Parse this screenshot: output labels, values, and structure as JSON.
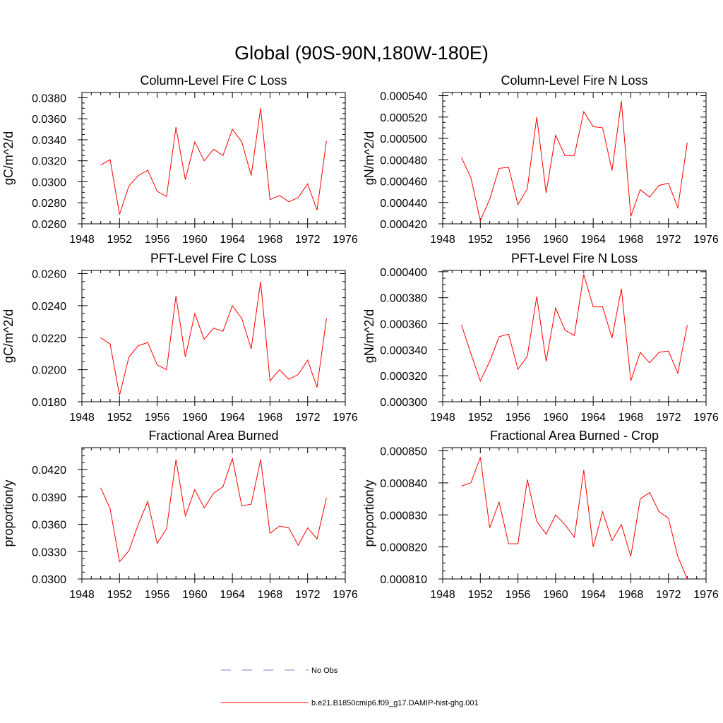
{
  "figure_title": "Global (90S-90N,180W-180E)",
  "line_color": "#ff0000",
  "obs_color": "#8080c0",
  "legend": {
    "entries": [
      {
        "label": "No Obs",
        "style": "dashed",
        "color": "#8080c0"
      },
      {
        "label": "b.e21.B1850cmip6.f09_g17.DAMIP-hist-ghg.001",
        "style": "solid",
        "color": "#ff0000"
      }
    ]
  },
  "chart_data": [
    {
      "type": "line",
      "title": "Column-Level Fire C Loss",
      "ylabel": "gC/m^2/d",
      "xlim": [
        1948,
        1976
      ],
      "xticks": [
        "1948",
        "1952",
        "1956",
        "1960",
        "1964",
        "1968",
        "1972",
        "1976"
      ],
      "ylim": [
        0.026,
        0.0385
      ],
      "yticks": [
        "0.0260",
        "0.0280",
        "0.0300",
        "0.0320",
        "0.0340",
        "0.0360",
        "0.0380"
      ],
      "series": [
        {
          "x": [
            1950,
            1951,
            1952,
            1953,
            1954,
            1955,
            1956,
            1957,
            1958,
            1959,
            1960,
            1961,
            1962,
            1963,
            1964,
            1965,
            1966,
            1967,
            1968,
            1969,
            1970,
            1971,
            1972,
            1973,
            1974
          ],
          "values": [
            0.0316,
            0.0321,
            0.0269,
            0.0296,
            0.0306,
            0.0311,
            0.0291,
            0.0286,
            0.0352,
            0.0302,
            0.0338,
            0.032,
            0.0331,
            0.0325,
            0.035,
            0.0338,
            0.0306,
            0.037,
            0.0283,
            0.0287,
            0.0281,
            0.0285,
            0.0298,
            0.0273,
            0.0339
          ]
        }
      ]
    },
    {
      "type": "line",
      "title": "Column-Level Fire N Loss",
      "ylabel": "gN/m^2/d",
      "xlim": [
        1948,
        1976
      ],
      "xticks": [
        "1948",
        "1952",
        "1956",
        "1960",
        "1964",
        "1968",
        "1972",
        "1976"
      ],
      "ylim": [
        0.00042,
        0.000543
      ],
      "yticks": [
        "0.000420",
        "0.000440",
        "0.000460",
        "0.000480",
        "0.000500",
        "0.000520",
        "0.000540"
      ],
      "series": [
        {
          "x": [
            1950,
            1951,
            1952,
            1953,
            1954,
            1955,
            1956,
            1957,
            1958,
            1959,
            1960,
            1961,
            1962,
            1963,
            1964,
            1965,
            1966,
            1967,
            1968,
            1969,
            1970,
            1971,
            1972,
            1973,
            1974
          ],
          "values": [
            0.000482,
            0.000463,
            0.000423,
            0.000443,
            0.000472,
            0.000473,
            0.000438,
            0.000453,
            0.00052,
            0.000449,
            0.000503,
            0.000484,
            0.000484,
            0.000525,
            0.000511,
            0.00051,
            0.00047,
            0.000535,
            0.000427,
            0.000452,
            0.000445,
            0.000456,
            0.000458,
            0.000435,
            0.000496
          ]
        }
      ]
    },
    {
      "type": "line",
      "title": "PFT-Level Fire C Loss",
      "ylabel": "gC/m^2/d",
      "xlim": [
        1948,
        1976
      ],
      "xticks": [
        "1948",
        "1952",
        "1956",
        "1960",
        "1964",
        "1968",
        "1972",
        "1976"
      ],
      "ylim": [
        0.018,
        0.0262
      ],
      "yticks": [
        "0.0180",
        "0.0200",
        "0.0220",
        "0.0240",
        "0.0260"
      ],
      "series": [
        {
          "x": [
            1950,
            1951,
            1952,
            1953,
            1954,
            1955,
            1956,
            1957,
            1958,
            1959,
            1960,
            1961,
            1962,
            1963,
            1964,
            1965,
            1966,
            1967,
            1968,
            1969,
            1970,
            1971,
            1972,
            1973,
            1974
          ],
          "values": [
            0.022,
            0.0216,
            0.0184,
            0.0208,
            0.0215,
            0.0217,
            0.0203,
            0.02,
            0.0246,
            0.0208,
            0.0235,
            0.0219,
            0.0226,
            0.0224,
            0.024,
            0.0232,
            0.0213,
            0.0255,
            0.0193,
            0.02,
            0.0194,
            0.0197,
            0.0206,
            0.0189,
            0.0232
          ]
        }
      ]
    },
    {
      "type": "line",
      "title": "PFT-Level Fire N Loss",
      "ylabel": "gN/m^2/d",
      "xlim": [
        1948,
        1976
      ],
      "xticks": [
        "1948",
        "1952",
        "1956",
        "1960",
        "1964",
        "1968",
        "1972",
        "1976"
      ],
      "ylim": [
        0.0003,
        0.000401
      ],
      "yticks": [
        "0.000300",
        "0.000320",
        "0.000340",
        "0.000360",
        "0.000380",
        "0.000400"
      ],
      "series": [
        {
          "x": [
            1950,
            1951,
            1952,
            1953,
            1954,
            1955,
            1956,
            1957,
            1958,
            1959,
            1960,
            1961,
            1962,
            1963,
            1964,
            1965,
            1966,
            1967,
            1968,
            1969,
            1970,
            1971,
            1972,
            1973,
            1974
          ],
          "values": [
            0.000359,
            0.000337,
            0.000316,
            0.000331,
            0.00035,
            0.000352,
            0.000325,
            0.000335,
            0.000381,
            0.000331,
            0.000372,
            0.000355,
            0.000351,
            0.000398,
            0.000373,
            0.000373,
            0.000349,
            0.000387,
            0.000316,
            0.000338,
            0.00033,
            0.000338,
            0.000339,
            0.000322,
            0.000359
          ]
        }
      ]
    },
    {
      "type": "line",
      "title": "Fractional Area Burned",
      "ylabel": "proportion/y",
      "xlim": [
        1948,
        1976
      ],
      "xticks": [
        "1948",
        "1952",
        "1956",
        "1960",
        "1964",
        "1968",
        "1972",
        "1976"
      ],
      "ylim": [
        0.03,
        0.0444
      ],
      "yticks": [
        "0.0300",
        "0.0330",
        "0.0360",
        "0.0390",
        "0.0420"
      ],
      "series": [
        {
          "x": [
            1950,
            1951,
            1952,
            1953,
            1954,
            1955,
            1956,
            1957,
            1958,
            1959,
            1960,
            1961,
            1962,
            1963,
            1964,
            1965,
            1966,
            1967,
            1968,
            1969,
            1970,
            1971,
            1972,
            1973,
            1974
          ],
          "values": [
            0.04,
            0.0377,
            0.0319,
            0.0331,
            0.036,
            0.0385,
            0.0339,
            0.0355,
            0.0431,
            0.0369,
            0.0398,
            0.0378,
            0.0394,
            0.0401,
            0.0432,
            0.038,
            0.0382,
            0.0431,
            0.035,
            0.0358,
            0.0356,
            0.0337,
            0.0356,
            0.0344,
            0.0389
          ]
        }
      ]
    },
    {
      "type": "line",
      "title": "Fractional Area Burned - Crop",
      "ylabel": "proportion/y",
      "xlim": [
        1948,
        1976
      ],
      "xticks": [
        "1948",
        "1952",
        "1956",
        "1960",
        "1964",
        "1968",
        "1972",
        "1976"
      ],
      "ylim": [
        0.00081,
        0.000851
      ],
      "yticks": [
        "0.000810",
        "0.000820",
        "0.000830",
        "0.000840",
        "0.000850"
      ],
      "series": [
        {
          "x": [
            1950,
            1951,
            1952,
            1953,
            1954,
            1955,
            1956,
            1957,
            1958,
            1959,
            1960,
            1961,
            1962,
            1963,
            1964,
            1965,
            1966,
            1967,
            1968,
            1969,
            1970,
            1971,
            1972,
            1973,
            1974
          ],
          "values": [
            0.000839,
            0.00084,
            0.000848,
            0.000826,
            0.000834,
            0.000821,
            0.000821,
            0.000841,
            0.000828,
            0.000824,
            0.00083,
            0.000827,
            0.000823,
            0.000844,
            0.00082,
            0.000831,
            0.000822,
            0.000827,
            0.000817,
            0.000835,
            0.000837,
            0.000831,
            0.000829,
            0.000817,
            0.00081
          ]
        }
      ]
    }
  ]
}
